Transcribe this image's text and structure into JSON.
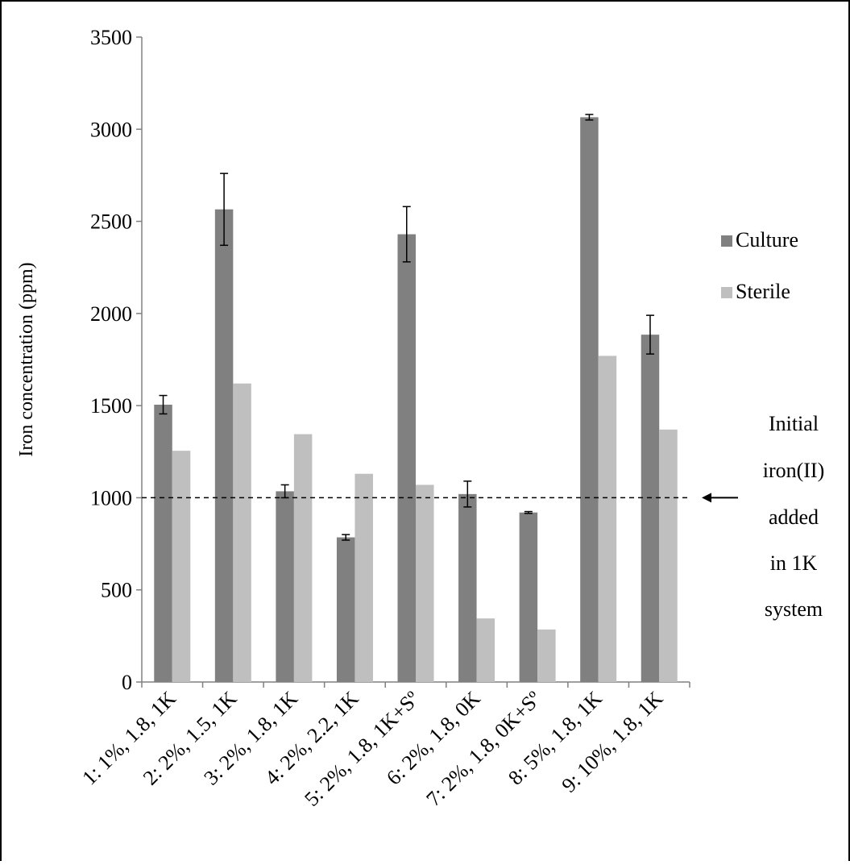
{
  "chart_data": {
    "type": "bar",
    "title": "",
    "xlabel": "",
    "ylabel": "Iron concentration (ppm)",
    "ylim": [
      0,
      3500
    ],
    "yticks": [
      0,
      500,
      1000,
      1500,
      2000,
      2500,
      3000,
      3500
    ],
    "grid": false,
    "legend_position": "right",
    "categories": [
      "1: 1%, 1.8, 1K",
      "2: 2%, 1.5, 1K",
      "3: 2%, 1.8, 1K",
      "4: 2%, 2.2, 1K",
      "5: 2%, 1.8, 1K+Sº",
      "6: 2%, 1.8, 0K",
      "7: 2%, 1.8, 0K+Sº",
      "8: 5%, 1.8, 1K",
      "9: 10%, 1.8, 1K"
    ],
    "series": [
      {
        "name": "Culture",
        "color": "#808080",
        "values": [
          1505,
          2565,
          1035,
          785,
          2430,
          1020,
          920,
          3065,
          1885
        ],
        "errors": [
          50,
          195,
          35,
          15,
          150,
          70,
          5,
          15,
          105
        ]
      },
      {
        "name": "Sterile",
        "color": "#bfbfbf",
        "values": [
          1255,
          1620,
          1345,
          1130,
          1070,
          345,
          285,
          1770,
          1370
        ]
      }
    ],
    "reference_line": {
      "value": 1000,
      "style": "dashed",
      "annotation": [
        "Initial",
        "iron(II)",
        "added",
        "in 1K",
        "system"
      ]
    }
  }
}
